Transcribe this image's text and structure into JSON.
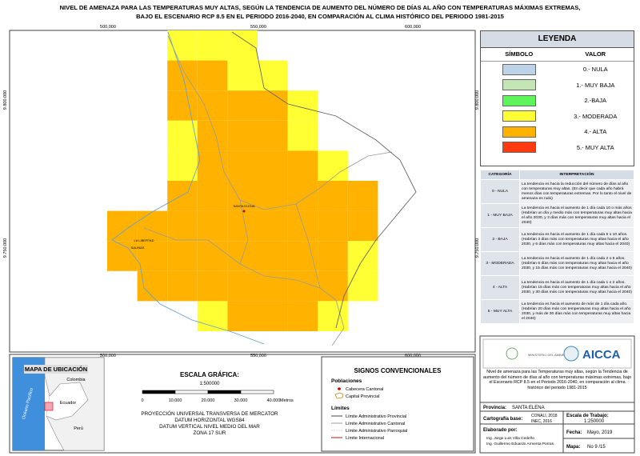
{
  "title": [
    "NIVEL DE AMENAZA PARA LAS TEMPERATURAS MUY ALTAS, SEGÚN LA TENDENCIA DE AUMENTO DEL NÚMERO DE DÍAS AL AÑO CON TEMPERATURAS MÁXIMAS EXTREMAS,",
    "BAJO EL ESCENARIO RCP 8.5 EN EL PERIODO 2016-2040, EN COMPARACIÓN AL CLIMA HISTÓRICO DEL PERIODO 1981-2015"
  ],
  "map": {
    "x_labels": [
      "500,000",
      "550,000",
      "600,000"
    ],
    "y_labels": [
      "9.800.000",
      "9.750.000"
    ],
    "places": [
      "SANTA ELENA",
      "LA LIBERTAD",
      "SALINAS"
    ]
  },
  "legend": {
    "title": "LEYENDA",
    "headers": [
      "SÍMBOLO",
      "VALOR"
    ],
    "items": [
      {
        "label": "0.- NULA",
        "color": "#bcd3e8"
      },
      {
        "label": "1.- MUY BAJA",
        "color": "#c4e6b4"
      },
      {
        "label": "2.-BAJA",
        "color": "#5ef55a"
      },
      {
        "label": "3.- MODERADA",
        "color": "#ffff33"
      },
      {
        "label": "4.- ALTA",
        "color": "#ffb300"
      },
      {
        "label": "5.- MUY ALTA",
        "color": "#ff3a10"
      }
    ]
  },
  "interpretation": {
    "headers": [
      "CATEGORÍA",
      "INTERPRETACIÓN"
    ],
    "rows": [
      [
        "0 - NULA",
        "La tendencia es hacia la reducción del número de días al año con temperaturas muy altas. (En decir que cada año habrá menos días con temperaturas extremas. Por lo tanto el nivel de amenaza es nulo)"
      ],
      [
        "1 - MUY BAJA",
        "La tendencia es hacia el aumento de 1 día cada 10 o más años (Habrían un día y medio más con temperaturas muy altas hacia el año 2030, y 3 días más con temperaturas muy altas hacia el 2040)"
      ],
      [
        "2 - BAJA",
        "La tendencia es hacia el aumento de 1 día cada 5 o 10 años. (Habrían 3 días más con temperaturas muy altas hacia el año 2030, y 6 días más con temperaturas muy altas hacia el 2040)"
      ],
      [
        "3 - MODERADA",
        "La tendencia es hacia el aumento de 1 día cada 2 o 5 años. (Habrían 6 días más con temperaturas muy altas hacia el año 2030, y 15 días más con temperaturas muy altas hacia el 2040)"
      ],
      [
        "4 - ALTA",
        "La tendencia es hacia el aumento de 1 día cada 1 o 2 años. (Habrían 15 días más con temperaturas muy altas hacia el año 2030, y 30 días más con temperaturas muy altas hacia el 2040)"
      ],
      [
        "5 - MUY ALTA",
        "La tendencia es hacia el aumento de más de 1 día cada año. (Habrían 20 días más con temperaturas muy altas hacia el año 2030, y más de 30 días más con temperaturas muy altas hacia el 2040)"
      ]
    ]
  },
  "location_map": {
    "title": "MAPA DE UBICACIÓN",
    "labels": [
      "Colombia",
      "Ecuador",
      "Perú",
      "Océano Pacífico"
    ]
  },
  "scale": {
    "title": "ESCALA GRÁFICA:",
    "ratio": "1:500000",
    "ticks": [
      "0",
      "10.000",
      "20.000",
      "30.000",
      "40.000"
    ],
    "unit": "Metros",
    "projection": [
      "PROYECCIÓN UNIVERSAL TRANSVERSA DE MERCATOR",
      "DATUM HORIZONTAL WGS84",
      "DATUM VERTICAL NIVEL MEDIO DEL MAR",
      "ZONA 17 SUR"
    ]
  },
  "signs": {
    "title": "SIGNOS CONVENCIONALES",
    "populations": "Poblaciones",
    "population_items": [
      "Cabecera Cantonal",
      "Capital Provincial"
    ],
    "limits": "Límites",
    "limit_items": [
      "Límite Administrativo Provincial",
      "Límite Administrativo Cantonal",
      "Límite Administrativo Parroquial",
      "Límite Internacional"
    ]
  },
  "info": {
    "ministry": "MINISTERIO DEL AMBIENTE",
    "logo": "AICCA",
    "description": "Nivel de amenaza para las Temperaturas muy altas, según la Tendencia de aumento del número de días al año con temperaturas máximas extremas, bajo el Escenario RCP 8.5 en el Periodo 2016-2040, en comparación al clima histórico del periodo 1981-2015",
    "province_label": "Provincia:",
    "province": "SANTA ELENA",
    "base_label": "Cartografía base:",
    "base": [
      "CONALI, 2018",
      "INEC, 2016"
    ],
    "work_scale_label": "Escala de Trabajo:",
    "work_scale": "1:250000",
    "made_by_label": "Elaborado por:",
    "made_by": [
      "Ing. Jorge Luis Villa Cedeño",
      "Ing. Guillermo Eduardo Armenta Porras"
    ],
    "date_label": "Fecha:",
    "date": "Mayo, 2019",
    "map_label": "Mapa:",
    "map_number": "No 9 /15"
  }
}
